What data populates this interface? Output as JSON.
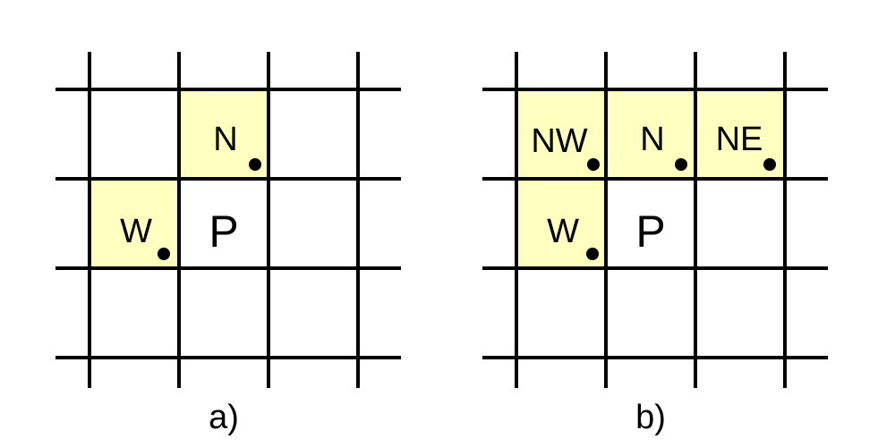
{
  "colors": {
    "highlight": "#ffffc0",
    "line": "#000000",
    "background": "#ffffff"
  },
  "panels": [
    {
      "id": "a",
      "caption": "a)",
      "cells": [
        {
          "label": "N",
          "highlight": true,
          "dot": true,
          "kind": "neighbor"
        },
        {
          "label": "W",
          "highlight": true,
          "dot": true,
          "kind": "neighbor"
        },
        {
          "label": "P",
          "highlight": false,
          "dot": false,
          "kind": "current"
        }
      ]
    },
    {
      "id": "b",
      "caption": "b)",
      "cells": [
        {
          "label": "NW",
          "highlight": true,
          "dot": true,
          "kind": "neighbor"
        },
        {
          "label": "N",
          "highlight": true,
          "dot": true,
          "kind": "neighbor"
        },
        {
          "label": "NE",
          "highlight": true,
          "dot": true,
          "kind": "neighbor"
        },
        {
          "label": "W",
          "highlight": true,
          "dot": true,
          "kind": "neighbor"
        },
        {
          "label": "P",
          "highlight": false,
          "dot": false,
          "kind": "current"
        }
      ]
    }
  ]
}
